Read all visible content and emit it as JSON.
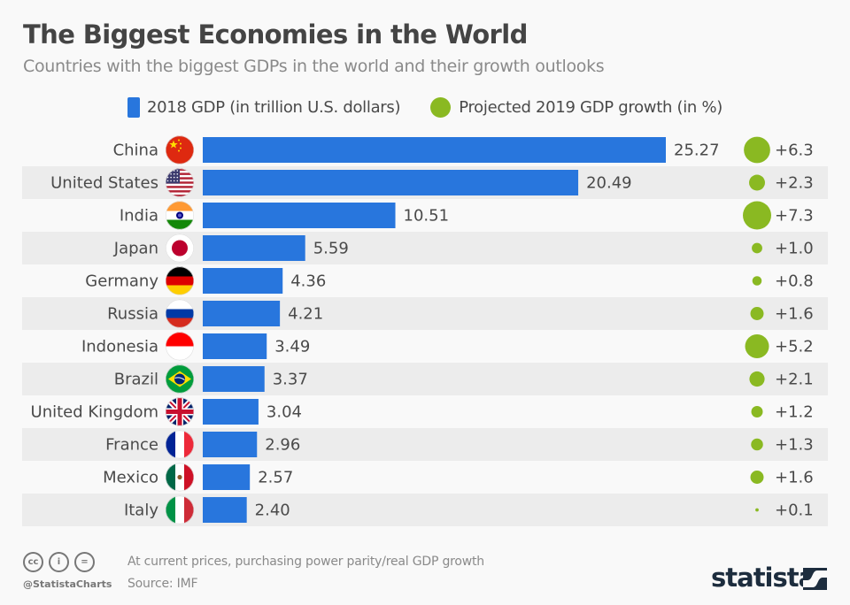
{
  "header": {
    "title": "The Biggest Economies in the World",
    "subtitle": "Countries with the biggest GDPs in the world and their growth outlooks"
  },
  "legend": {
    "bar_label": "2018 GDP (in trillion U.S. dollars)",
    "dot_label": "Projected 2019 GDP growth (in %)"
  },
  "colors": {
    "bar": "#2876dd",
    "dot": "#8ab922",
    "stripe": "#ececec",
    "background": "#f9f9f9",
    "text": "#4a4a4a",
    "brand": "#1d2d3e"
  },
  "chart_data": {
    "type": "bar",
    "title": "The Biggest Economies in the World",
    "subtitle": "Countries with the biggest GDPs in the world and their growth outlooks",
    "orientation": "horizontal",
    "categories": [
      "China",
      "United States",
      "India",
      "Japan",
      "Germany",
      "Russia",
      "Indonesia",
      "Brazil",
      "United Kingdom",
      "France",
      "Mexico",
      "Italy"
    ],
    "flags": [
      "flag-china",
      "flag-united-states",
      "flag-india",
      "flag-japan",
      "flag-germany",
      "flag-russia",
      "flag-indonesia",
      "flag-brazil",
      "flag-united-kingdom",
      "flag-france",
      "flag-mexico",
      "flag-italy"
    ],
    "series": [
      {
        "name": "2018 GDP (in trillion U.S. dollars)",
        "type": "bar",
        "values": [
          25.27,
          20.49,
          10.51,
          5.59,
          4.36,
          4.21,
          3.49,
          3.37,
          3.04,
          2.96,
          2.57,
          2.4
        ],
        "labels": [
          "25.27",
          "20.49",
          "10.51",
          "5.59",
          "4.36",
          "4.21",
          "3.49",
          "3.37",
          "3.04",
          "2.96",
          "2.57",
          "2.40"
        ]
      },
      {
        "name": "Projected 2019 GDP growth (in %)",
        "type": "bubble",
        "values": [
          6.3,
          2.3,
          7.3,
          1.0,
          0.8,
          1.6,
          5.2,
          2.1,
          1.2,
          1.3,
          1.6,
          0.1
        ],
        "labels": [
          "+6.3",
          "+2.3",
          "+7.3",
          "+1.0",
          "+0.8",
          "+1.6",
          "+5.2",
          "+2.1",
          "+1.2",
          "+1.3",
          "+1.6",
          "+0.1"
        ]
      }
    ],
    "xlim": [
      0,
      25.27
    ],
    "grid": false,
    "legend_position": "top-center"
  },
  "footer": {
    "note": "At current prices, purchasing power parity/real GDP growth",
    "source": "Source: IMF",
    "handle": "@StatistaCharts",
    "license_icons": [
      "cc-icon",
      "attribution-icon",
      "no-derivatives-icon"
    ],
    "license_glyphs": [
      "cc",
      "i",
      "="
    ],
    "brand": "statista"
  }
}
